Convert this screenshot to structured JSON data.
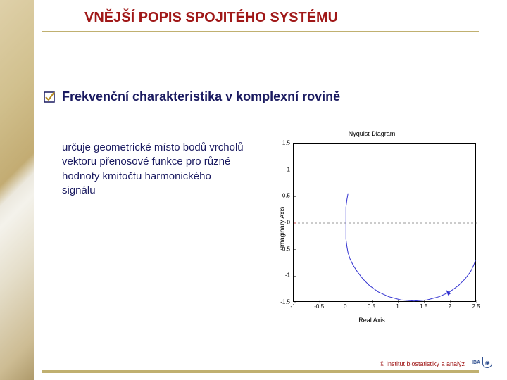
{
  "title": {
    "text": "VNĚJŠÍ POPIS SPOJITÉHO SYSTÉMU",
    "color": "#a01818",
    "fontsize": 20
  },
  "heading": {
    "text": "Frekvenční charakteristika v komplexní rovině",
    "color": "#1a1a60",
    "fontsize": 18
  },
  "body": {
    "text": "určuje geometrické místo bodů vrcholů vektoru přenosové funkce pro různé hodnoty kmitočtu harmonického signálu",
    "color": "#1a1a60",
    "fontsize": 15
  },
  "checkmark": {
    "box_color": "#1a1a60",
    "tick_color": "#b48a20"
  },
  "copyright": {
    "text": "© Institut biostatistiky a analýz",
    "color": "#a01818",
    "fontsize": 9
  },
  "diagram": {
    "type": "line",
    "title": "Nyquist Diagram",
    "title_fontsize": 9,
    "xlabel": "Real Axis",
    "ylabel": "Imaginary Axis",
    "label_fontsize": 9,
    "xlim": [
      -1,
      2.5
    ],
    "ylim": [
      -1.5,
      1.5
    ],
    "xticks": [
      -1,
      -0.5,
      0,
      0.5,
      1,
      1.5,
      2,
      2.5
    ],
    "yticks": [
      -1.5,
      -1,
      -0.5,
      0,
      0.5,
      1,
      1.5
    ],
    "tick_fontsize": 8,
    "line_color": "#3030d0",
    "line_width": 1,
    "grid_dash_color": "#303030",
    "curve_points": [
      [
        2.48,
        -0.7
      ],
      [
        2.44,
        -0.8
      ],
      [
        2.38,
        -0.92
      ],
      [
        2.28,
        -1.05
      ],
      [
        2.15,
        -1.18
      ],
      [
        1.98,
        -1.3
      ],
      [
        1.78,
        -1.39
      ],
      [
        1.55,
        -1.45
      ],
      [
        1.3,
        -1.47
      ],
      [
        1.05,
        -1.45
      ],
      [
        0.82,
        -1.39
      ],
      [
        0.62,
        -1.3
      ],
      [
        0.45,
        -1.18
      ],
      [
        0.32,
        -1.05
      ],
      [
        0.22,
        -0.92
      ],
      [
        0.14,
        -0.8
      ],
      [
        0.08,
        -0.68
      ],
      [
        0.04,
        -0.56
      ],
      [
        0.02,
        -0.45
      ],
      [
        0.0,
        -0.3
      ],
      [
        0.0,
        0.3
      ],
      [
        0.02,
        0.45
      ],
      [
        0.04,
        0.56
      ]
    ],
    "arrow_at": [
      1.98,
      -1.3
    ],
    "vdash_x": 0,
    "hdash_y": 0,
    "marker_at": [
      -1,
      0
    ]
  }
}
